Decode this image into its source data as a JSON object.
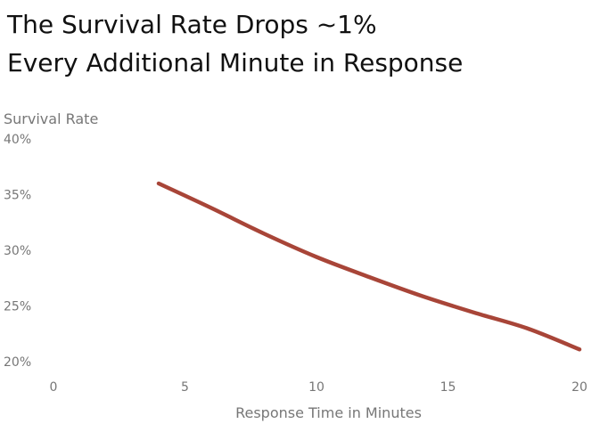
{
  "title_lines": [
    "The Survival Rate Drops ~1%",
    "Every Additional Minute in Response"
  ],
  "colors": {
    "line": "#a84538",
    "text_title": "#111111",
    "text_axis": "#777777"
  },
  "chart_data": {
    "type": "line",
    "title": "The Survival Rate Drops ~1% Every Additional Minute in Response",
    "xlabel": "Response Time in Minutes",
    "ylabel": "Survival Rate",
    "xlim": [
      0,
      20
    ],
    "ylim": [
      20,
      40
    ],
    "x_ticks": [
      0,
      5,
      10,
      15,
      20
    ],
    "y_ticks": [
      20,
      25,
      30,
      35,
      40
    ],
    "y_tick_labels": [
      "20%",
      "25%",
      "30%",
      "35%",
      "40%"
    ],
    "grid": false,
    "legend": "none",
    "series": [
      {
        "x": [
          4,
          6,
          8,
          10,
          12,
          14,
          16,
          18,
          20
        ],
        "y": [
          36.0,
          33.8,
          31.5,
          29.4,
          27.6,
          25.9,
          24.4,
          23.0,
          21.1
        ]
      }
    ]
  }
}
